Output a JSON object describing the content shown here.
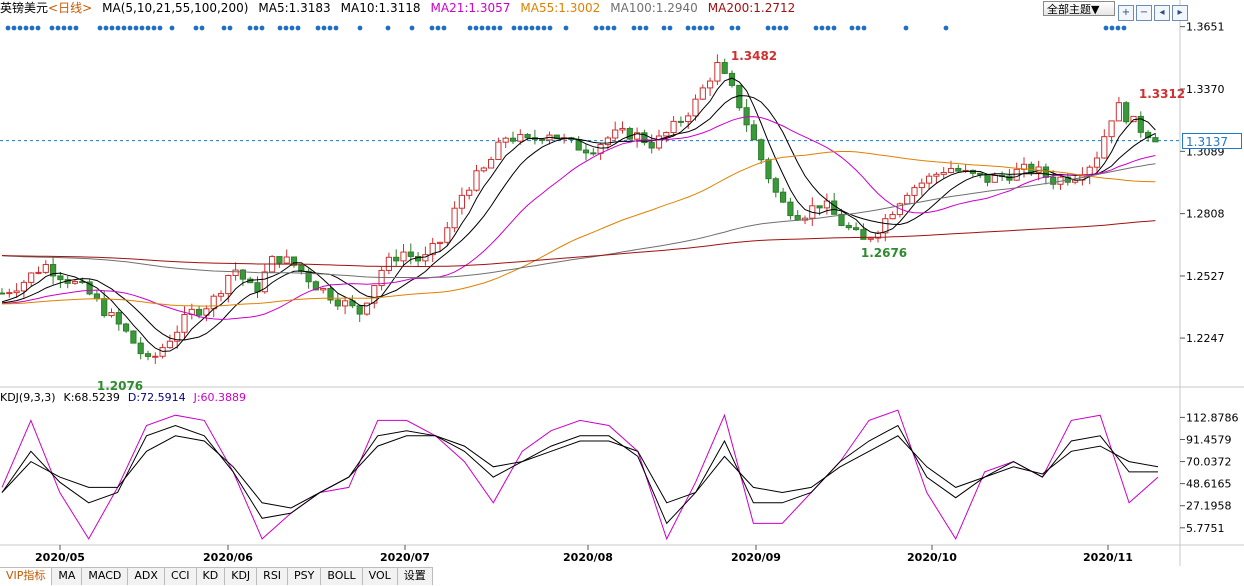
{
  "header": {
    "instrument": "英镑美元",
    "period": "<日线>",
    "ma_params": "MA(5,10,21,55,100,200)",
    "ma5": "MA5:1.3183",
    "ma10": "MA10:1.3118",
    "ma21": "MA21:1.3057",
    "ma55": "MA55:1.3002",
    "ma100": "MA100:1.2940",
    "ma200": "MA200:1.2712"
  },
  "theme_button": "全部主题▼",
  "toolbar_icons": [
    "plus-icon",
    "minus-icon",
    "back-icon",
    "forward-icon"
  ],
  "kdj_header": {
    "params": "KDJ(9,3,3)",
    "k": "K:68.5239",
    "d": "D:72.5914",
    "j": "J:60.3889"
  },
  "current_price": "1.3137",
  "tabs": [
    "VIP指标",
    "MA",
    "MACD",
    "ADX",
    "CCI",
    "KD",
    "KDJ",
    "RSI",
    "PSY",
    "BOLL",
    "VOL",
    "设置"
  ],
  "colors": {
    "up": "#ff4040",
    "down": "#3a9a3a",
    "ma5": "#000000",
    "ma10": "#000000",
    "ma21": "#cc00cc",
    "ma55": "#e08000",
    "ma100": "#707070",
    "ma200": "#a01010",
    "k": "#000000",
    "d": "#000000",
    "j": "#cc00cc",
    "accent": "#1f78c8"
  },
  "chart_data": [
    {
      "type": "candlestick",
      "title": "英镑美元 <日线>",
      "ylim": [
        1.2067,
        1.3681
      ],
      "y_ticks": [
        "1.3651",
        "1.3370",
        "1.3089",
        "1.2808",
        "1.2527",
        "1.2247"
      ],
      "x_ticks": [
        "2020/05",
        "2020/06",
        "2020/07",
        "2020/08",
        "2020/09",
        "2020/10",
        "2020/11"
      ],
      "annotations": [
        {
          "label": "1.3482",
          "value": 1.3482,
          "type": "high"
        },
        {
          "label": "1.2076",
          "value": 1.2076,
          "type": "low"
        },
        {
          "label": "1.2676",
          "value": 1.2676,
          "type": "low"
        },
        {
          "label": "1.3312",
          "value": 1.3312,
          "type": "high"
        }
      ],
      "current_price": 1.3137,
      "close_path": [
        1.245,
        1.25,
        1.258,
        1.252,
        1.246,
        1.236,
        1.226,
        1.213,
        1.225,
        1.236,
        1.241,
        1.257,
        1.245,
        1.262,
        1.257,
        1.248,
        1.242,
        1.236,
        1.255,
        1.264,
        1.259,
        1.27,
        1.292,
        1.301,
        1.316,
        1.313,
        1.318,
        1.312,
        1.31,
        1.316,
        1.317,
        1.312,
        1.32,
        1.331,
        1.348,
        1.332,
        1.308,
        1.286,
        1.28,
        1.286,
        1.276,
        1.268,
        1.278,
        1.291,
        1.296,
        1.302,
        1.298,
        1.296,
        1.299,
        1.301,
        1.296,
        1.298,
        1.305,
        1.33,
        1.32,
        1.315
      ],
      "kdj": {
        "ylim": [
          -8,
          122
        ],
        "y_ticks": [
          "112.8786",
          "91.4579",
          "70.0372",
          "48.6165",
          "27.1958",
          "5.7751"
        ],
        "j_path": [
          45,
          110,
          40,
          -5,
          45,
          105,
          115,
          110,
          60,
          -5,
          20,
          40,
          45,
          110,
          110,
          95,
          70,
          30,
          80,
          100,
          110,
          105,
          80,
          -5,
          50,
          115,
          10,
          10,
          40,
          70,
          110,
          120,
          40,
          -5,
          60,
          70,
          55,
          110,
          115,
          30,
          55
        ],
        "k_path": [
          40,
          80,
          50,
          30,
          40,
          95,
          105,
          95,
          60,
          15,
          20,
          40,
          55,
          95,
          100,
          95,
          80,
          55,
          70,
          85,
          95,
          95,
          75,
          10,
          40,
          90,
          30,
          30,
          40,
          70,
          90,
          105,
          55,
          35,
          55,
          70,
          55,
          90,
          95,
          60,
          60
        ],
        "d_path": [
          40,
          70,
          55,
          45,
          45,
          80,
          95,
          90,
          65,
          30,
          25,
          40,
          55,
          85,
          95,
          95,
          85,
          65,
          70,
          80,
          90,
          90,
          80,
          30,
          40,
          75,
          45,
          40,
          45,
          65,
          80,
          95,
          65,
          45,
          55,
          65,
          58,
          80,
          85,
          70,
          65
        ]
      }
    }
  ]
}
